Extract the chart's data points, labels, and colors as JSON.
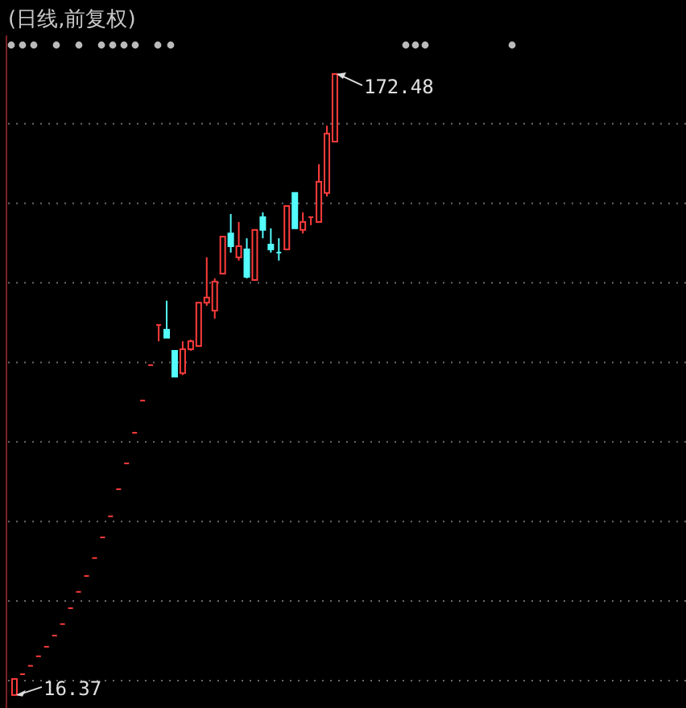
{
  "chart_data": {
    "type": "candlestick",
    "title": "(日线,前复权)",
    "categories": [
      null,
      null,
      null,
      null,
      null,
      null,
      null,
      null,
      null,
      null,
      null,
      null,
      null,
      null,
      null,
      null,
      null,
      null,
      null,
      null,
      null,
      null,
      null,
      null,
      null,
      null,
      null,
      null,
      null,
      null,
      null,
      null,
      null,
      null,
      null,
      null,
      null,
      null,
      null,
      null,
      null
    ],
    "ohlc": [
      [
        16.37,
        20.4,
        16.37,
        20.4
      ],
      [
        21.6,
        21.6,
        21.6,
        21.6
      ],
      [
        23.7,
        23.7,
        23.7,
        23.7
      ],
      [
        26.1,
        26.1,
        26.1,
        26.1
      ],
      [
        28.5,
        28.5,
        28.5,
        28.5
      ],
      [
        31.3,
        31.3,
        31.3,
        31.3
      ],
      [
        34.2,
        34.2,
        34.2,
        34.2
      ],
      [
        38.2,
        38.2,
        38.2,
        38.2
      ],
      [
        42.3,
        42.3,
        42.3,
        42.3
      ],
      [
        46.3,
        46.3,
        46.3,
        46.3
      ],
      [
        50.8,
        50.8,
        50.8,
        50.8
      ],
      [
        56.0,
        56.0,
        56.0,
        56.0
      ],
      [
        61.3,
        61.3,
        61.3,
        61.3
      ],
      [
        68.1,
        68.1,
        68.1,
        68.1
      ],
      [
        74.6,
        74.6,
        74.6,
        74.6
      ],
      [
        82.3,
        82.3,
        82.3,
        82.3
      ],
      [
        90.4,
        90.4,
        90.4,
        90.4
      ],
      [
        99.3,
        99.3,
        99.3,
        99.3
      ],
      [
        109.4,
        109.4,
        105.3,
        109.4
      ],
      [
        108.2,
        115.5,
        106.2,
        106.2
      ],
      [
        102.9,
        102.9,
        96.4,
        96.4
      ],
      [
        97.3,
        105.3,
        96.8,
        103.3
      ],
      [
        103.3,
        105.7,
        102.9,
        105.3
      ],
      [
        104.1,
        115.0,
        104.1,
        115.0
      ],
      [
        115.0,
        126.4,
        114.2,
        116.3
      ],
      [
        113.0,
        121.1,
        111.0,
        120.3
      ],
      [
        122.3,
        131.6,
        122.3,
        131.6
      ],
      [
        132.4,
        137.3,
        127.6,
        129.2
      ],
      [
        126.4,
        135.3,
        125.6,
        129.2
      ],
      [
        128.4,
        131.2,
        121.1,
        121.5
      ],
      [
        120.7,
        133.3,
        120.7,
        133.3
      ],
      [
        136.5,
        137.7,
        131.2,
        133.3
      ],
      [
        129.6,
        133.7,
        127.6,
        128.4
      ],
      [
        127.6,
        131.2,
        125.6,
        127.2
      ],
      [
        128.4,
        139.3,
        128.4,
        139.3
      ],
      [
        142.6,
        142.6,
        133.7,
        133.7
      ],
      [
        133.3,
        137.7,
        132.4,
        135.3
      ],
      [
        136.5,
        136.5,
        134.5,
        136.5
      ],
      [
        135.3,
        149.8,
        135.3,
        145.4
      ],
      [
        142.6,
        159.5,
        141.7,
        157.5
      ],
      [
        155.5,
        172.48,
        155.5,
        172.48
      ]
    ],
    "colors": [
      "#ff3c3c",
      "#ff3c3c",
      "#ff3c3c",
      "#ff3c3c",
      "#ff3c3c",
      "#ff3c3c",
      "#ff3c3c",
      "#ff3c3c",
      "#ff3c3c",
      "#ff3c3c",
      "#ff3c3c",
      "#ff3c3c",
      "#ff3c3c",
      "#ff3c3c",
      "#ff3c3c",
      "#ff3c3c",
      "#ff3c3c",
      "#ff3c3c",
      "#ff3c3c",
      "#54fcfc",
      "#54fcfc",
      "#ff3c3c",
      "#ff3c3c",
      "#ff3c3c",
      "#ff3c3c",
      "#ff3c3c",
      "#ff3c3c",
      "#54fcfc",
      "#ff3c3c",
      "#54fcfc",
      "#ff3c3c",
      "#54fcfc",
      "#54fcfc",
      "#54fcfc",
      "#ff3c3c",
      "#54fcfc",
      "#ff3c3c",
      "#ff3c3c",
      "#ff3c3c",
      "#ff3c3c",
      "#ff3c3c"
    ],
    "ylim": [
      13.1,
      182.2
    ],
    "yticks": [
      {
        "value": 20,
        "label": null
      },
      {
        "value": 40,
        "label": null
      },
      {
        "value": 60,
        "label": null
      },
      {
        "value": 80,
        "label": null
      },
      {
        "value": 100,
        "label": null
      },
      {
        "value": 120,
        "label": null
      },
      {
        "value": 140,
        "label": null
      },
      {
        "value": 160,
        "label": null
      }
    ],
    "grid": "y",
    "annotations": [
      "172.48",
      "16.37"
    ]
  }
}
